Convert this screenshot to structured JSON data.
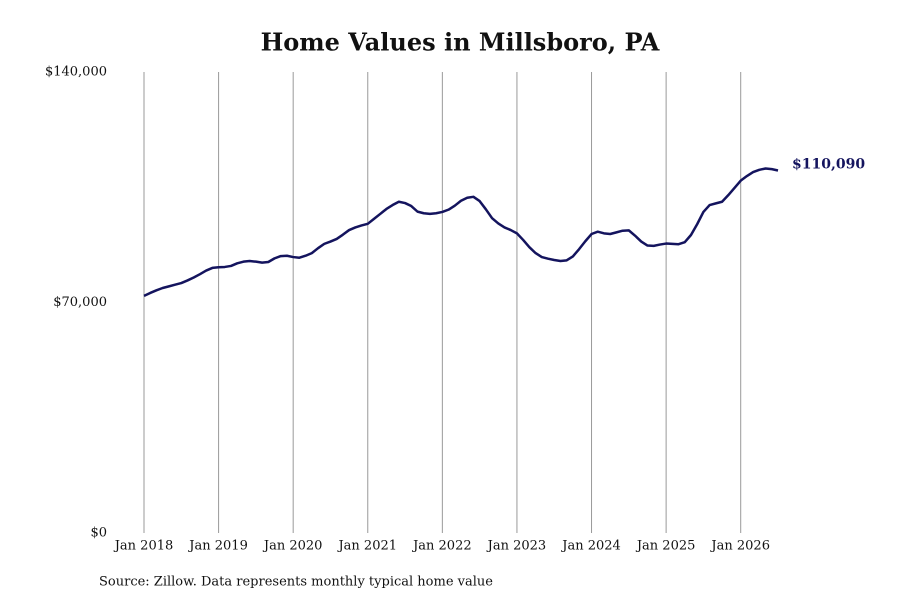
{
  "chart_data": {
    "type": "line",
    "title": "Home Values in Millsboro, PA",
    "source": "Source: Zillow. Data represents monthly typical home value",
    "x": [
      "2018-01",
      "2018-02",
      "2018-03",
      "2018-04",
      "2018-05",
      "2018-06",
      "2018-07",
      "2018-08",
      "2018-09",
      "2018-10",
      "2018-11",
      "2018-12",
      "2019-01",
      "2019-02",
      "2019-03",
      "2019-04",
      "2019-05",
      "2019-06",
      "2019-07",
      "2019-08",
      "2019-09",
      "2019-10",
      "2019-11",
      "2019-12",
      "2020-01",
      "2020-02",
      "2020-03",
      "2020-04",
      "2020-05",
      "2020-06",
      "2020-07",
      "2020-08",
      "2020-09",
      "2020-10",
      "2020-11",
      "2020-12",
      "2021-01",
      "2021-02",
      "2021-03",
      "2021-04",
      "2021-05",
      "2021-06",
      "2021-07",
      "2021-08",
      "2021-09",
      "2021-10",
      "2021-11",
      "2021-12",
      "2022-01",
      "2022-02",
      "2022-03",
      "2022-04",
      "2022-05",
      "2022-06",
      "2022-07",
      "2022-08",
      "2022-09",
      "2022-10",
      "2022-11",
      "2022-12",
      "2023-01",
      "2023-02",
      "2023-03",
      "2023-04",
      "2023-05",
      "2023-06",
      "2023-07",
      "2023-08",
      "2023-09",
      "2023-10",
      "2023-11",
      "2023-12",
      "2024-01",
      "2024-02",
      "2024-03",
      "2024-04",
      "2024-05",
      "2024-06",
      "2024-07",
      "2024-08",
      "2024-09",
      "2024-10",
      "2024-11",
      "2024-12",
      "2025-01",
      "2025-02",
      "2025-03",
      "2025-04",
      "2025-05",
      "2025-06",
      "2025-07",
      "2025-08",
      "2025-09",
      "2025-10",
      "2025-11",
      "2025-12",
      "2026-01",
      "2026-02",
      "2026-03",
      "2026-04",
      "2026-05",
      "2026-06",
      "2026-07"
    ],
    "series": [
      {
        "name": "Home value",
        "color": "#14145e",
        "values": [
          72000,
          72900,
          73700,
          74400,
          74900,
          75400,
          75900,
          76700,
          77600,
          78600,
          79700,
          80500,
          80700,
          80800,
          81100,
          81900,
          82400,
          82600,
          82400,
          82100,
          82300,
          83400,
          84100,
          84200,
          83800,
          83600,
          84200,
          85000,
          86500,
          87800,
          88500,
          89300,
          90600,
          92000,
          92800,
          93400,
          93900,
          95400,
          96900,
          98400,
          99600,
          100600,
          100200,
          99300,
          97600,
          97100,
          96900,
          97100,
          97500,
          98200,
          99400,
          100900,
          101800,
          102100,
          100800,
          98300,
          95600,
          94000,
          92800,
          92000,
          91000,
          89000,
          86800,
          85000,
          83800,
          83300,
          82900,
          82600,
          82800,
          84000,
          86200,
          88600,
          90800,
          91500,
          91000,
          90800,
          91300,
          91800,
          91900,
          90300,
          88500,
          87300,
          87200,
          87600,
          87900,
          87800,
          87700,
          88300,
          90500,
          93800,
          97500,
          99600,
          100100,
          100600,
          102600,
          104800,
          107000,
          108400,
          109600,
          110300,
          110700,
          110500,
          110090
        ],
        "value_labels": [
          null,
          null,
          null,
          null,
          null,
          null,
          null,
          null,
          null,
          null,
          null,
          null,
          null,
          null,
          null,
          null,
          null,
          null,
          null,
          null,
          null,
          null,
          null,
          null,
          null,
          null,
          null,
          null,
          null,
          null,
          null,
          null,
          null,
          null,
          null,
          null,
          null,
          null,
          null,
          null,
          null,
          null,
          null,
          null,
          null,
          null,
          null,
          null,
          null,
          null,
          null,
          null,
          null,
          null,
          null,
          null,
          null,
          null,
          null,
          null,
          null,
          null,
          null,
          null,
          null,
          null,
          null,
          null,
          null,
          null,
          null,
          null,
          null,
          null,
          null,
          null,
          null,
          null,
          null,
          null,
          null,
          null,
          null,
          null,
          null,
          null,
          null,
          null,
          null,
          null,
          null,
          null,
          null,
          null,
          null,
          null,
          null,
          null,
          null,
          null,
          null,
          null,
          "$110,090"
        ]
      }
    ],
    "xlim": [
      "2018-01",
      "2026-07"
    ],
    "xticks": [
      {
        "value": "2018-01",
        "label": "Jan 2018"
      },
      {
        "value": "2019-01",
        "label": "Jan 2019"
      },
      {
        "value": "2020-01",
        "label": "Jan 2020"
      },
      {
        "value": "2021-01",
        "label": "Jan 2021"
      },
      {
        "value": "2022-01",
        "label": "Jan 2022"
      },
      {
        "value": "2023-01",
        "label": "Jan 2023"
      },
      {
        "value": "2024-01",
        "label": "Jan 2024"
      },
      {
        "value": "2025-01",
        "label": "Jan 2025"
      },
      {
        "value": "2026-01",
        "label": "Jan 2026"
      }
    ],
    "ylim": [
      0,
      140000
    ],
    "yticks": [
      {
        "value": 0,
        "label": "$0"
      },
      {
        "value": 70000,
        "label": "$70,000"
      },
      {
        "value": 140000,
        "label": "$140,000"
      }
    ],
    "grid": "x"
  }
}
